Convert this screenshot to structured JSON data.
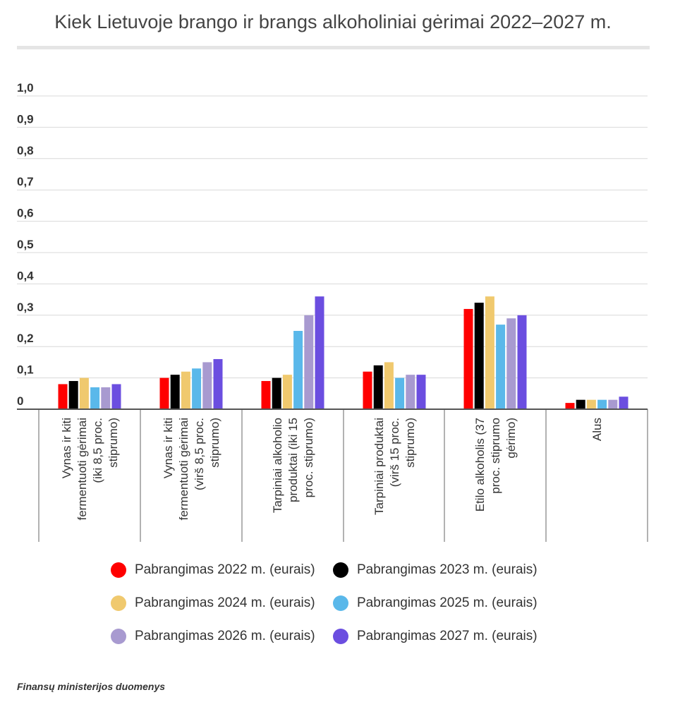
{
  "chart_data": {
    "type": "bar",
    "title": "Kiek Lietuvoje brango ir brangs alkoholiniai gėrimai 2022–2027 m.",
    "ylim": [
      0,
      1.0
    ],
    "yticks": [
      "0",
      "0,1",
      "0,2",
      "0,3",
      "0,4",
      "0,5",
      "0,6",
      "0,7",
      "0,8",
      "0,9",
      "1,0"
    ],
    "categories": [
      [
        "Vynas ir kiti",
        "fermentuoti gėrimai",
        "(iki 8,5 proc.",
        "stiprumo)"
      ],
      [
        "Vynas ir kiti",
        "fermentuoti gėrimai",
        "(virš 8,5 proc.",
        "stiprumo)"
      ],
      [
        "Tarpiniai alkoholio",
        "produktai (iki 15",
        "proc. stiprumo)"
      ],
      [
        "Tarpiniai produktai",
        "(virš 15 proc.",
        "stiprumo)"
      ],
      [
        "Etilo alkoholis (37",
        "proc. stiprumo",
        "gėrimo)"
      ],
      [
        "Alus"
      ]
    ],
    "series": [
      {
        "name": "Pabrangimas 2022 m. (eurais)",
        "color": "#ff0000",
        "values": [
          0.08,
          0.1,
          0.09,
          0.12,
          0.32,
          0.02
        ]
      },
      {
        "name": "Pabrangimas 2023 m. (eurais)",
        "color": "#000000",
        "values": [
          0.09,
          0.11,
          0.1,
          0.14,
          0.34,
          0.03
        ]
      },
      {
        "name": "Pabrangimas 2024 m. (eurais)",
        "color": "#f0c96e",
        "values": [
          0.1,
          0.12,
          0.11,
          0.15,
          0.36,
          0.03
        ]
      },
      {
        "name": "Pabrangimas 2025 m. (eurais)",
        "color": "#5ab8ea",
        "values": [
          0.07,
          0.13,
          0.25,
          0.1,
          0.27,
          0.03
        ]
      },
      {
        "name": "Pabrangimas 2026 m. (eurais)",
        "color": "#a89ad0",
        "values": [
          0.07,
          0.15,
          0.3,
          0.11,
          0.29,
          0.03
        ]
      },
      {
        "name": "Pabrangimas 2027 m. (eurais)",
        "color": "#6b4ee0",
        "values": [
          0.08,
          0.16,
          0.36,
          0.11,
          0.3,
          0.04
        ]
      }
    ],
    "source": "Finansų ministerijos duomenys"
  }
}
